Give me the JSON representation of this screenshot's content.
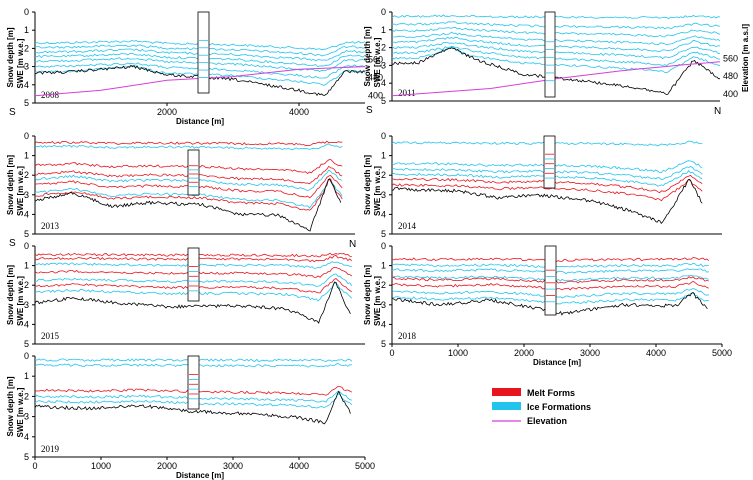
{
  "colors": {
    "melt": "#e8141e",
    "ice": "#22c4ee",
    "elev": "#d63fd6",
    "ground": "#000000"
  },
  "legend": {
    "melt": "Melt Forms",
    "ice": "Ice Formations",
    "elev": "Elevation"
  },
  "axes": {
    "xlabel": "Distance [m]",
    "ylabel_top": "Snow depth [m]",
    "ylabel_bottom": "SWE [m w.e.]",
    "elev_label": "Elevation [m a.s.l]"
  },
  "chart_data": [
    {
      "type": "line",
      "year": "2008",
      "xlim": [
        0,
        5000
      ],
      "ylim": [
        0,
        5
      ],
      "xticks": [
        "2000",
        "4000"
      ],
      "yticks": [
        "0",
        "1",
        "2",
        "3",
        "4",
        "5"
      ],
      "elev_ticks": [
        "560",
        "480",
        "400"
      ],
      "show_xlabel": true,
      "direction": [
        "S",
        ""
      ],
      "ground_profile": [
        [
          0,
          3.35
        ],
        [
          500,
          3.3
        ],
        [
          1000,
          3.15
        ],
        [
          1500,
          3.0
        ],
        [
          2000,
          3.45
        ],
        [
          3000,
          3.7
        ],
        [
          4000,
          4.3
        ],
        [
          4400,
          4.6
        ],
        [
          4700,
          3.25
        ],
        [
          5000,
          3.3
        ]
      ],
      "elevation_profile": [
        [
          0,
          4.6
        ],
        [
          1000,
          4.3
        ],
        [
          2000,
          3.75
        ],
        [
          3000,
          3.55
        ],
        [
          4000,
          3.15
        ],
        [
          5000,
          3.0
        ]
      ],
      "ice_lines": [
        1.7,
        1.95,
        2.2,
        2.45,
        2.7,
        3.0,
        3.3
      ],
      "melt_lines": []
    },
    {
      "type": "line",
      "year": "2011",
      "xlim": [
        0,
        5000
      ],
      "ylim": [
        0,
        5
      ],
      "xticks": [],
      "yticks": [
        "0",
        "1",
        "2",
        "3",
        "4",
        "5"
      ],
      "elev_ticks": [
        "560",
        "480",
        "400"
      ],
      "show_xlabel": false,
      "direction": [
        "S",
        "N"
      ],
      "ground_profile": [
        [
          0,
          2.9
        ],
        [
          400,
          2.85
        ],
        [
          900,
          2.0
        ],
        [
          1300,
          2.7
        ],
        [
          2000,
          3.5
        ],
        [
          3000,
          3.9
        ],
        [
          3800,
          4.3
        ],
        [
          4200,
          4.6
        ],
        [
          4600,
          2.7
        ],
        [
          5000,
          3.8
        ]
      ],
      "elevation_profile": [
        [
          0,
          4.7
        ],
        [
          1500,
          4.3
        ],
        [
          2500,
          3.75
        ],
        [
          3500,
          3.3
        ],
        [
          4500,
          2.95
        ],
        [
          5000,
          2.8
        ]
      ],
      "ice_lines": [
        0.25,
        0.7,
        1.05,
        1.4,
        1.7,
        2.0,
        2.3,
        2.6
      ],
      "melt_lines": []
    },
    {
      "type": "line",
      "year": "2013",
      "xlim": [
        0,
        5000
      ],
      "ylim": [
        0,
        5
      ],
      "xticks": [],
      "yticks": [
        "0",
        "1",
        "2",
        "3",
        "4",
        "5"
      ],
      "elev_ticks": [],
      "show_xlabel": false,
      "direction": [
        "S",
        "N"
      ],
      "ground_profile": [
        [
          0,
          3.3
        ],
        [
          600,
          2.9
        ],
        [
          1200,
          3.6
        ],
        [
          1800,
          3.4
        ],
        [
          2600,
          3.5
        ],
        [
          3200,
          4.0
        ],
        [
          3800,
          4.05
        ],
        [
          4300,
          4.8
        ],
        [
          4600,
          2.1
        ],
        [
          4800,
          3.6
        ]
      ],
      "elevation_profile": [],
      "ice_lines": [
        0.55,
        2.2,
        2.9
      ],
      "melt_lines": [
        0.35,
        1.5,
        1.95,
        2.5,
        3.05
      ]
    },
    {
      "type": "line",
      "year": "2014",
      "xlim": [
        0,
        5000
      ],
      "ylim": [
        0,
        5
      ],
      "xticks": [],
      "yticks": [
        "0",
        "1",
        "2",
        "3",
        "4",
        "5"
      ],
      "elev_ticks": [],
      "show_xlabel": false,
      "direction": [
        "",
        ""
      ],
      "ground_profile": [
        [
          0,
          2.7
        ],
        [
          1000,
          2.8
        ],
        [
          1600,
          3.15
        ],
        [
          2200,
          3.0
        ],
        [
          3000,
          3.3
        ],
        [
          3600,
          3.8
        ],
        [
          4100,
          4.45
        ],
        [
          4500,
          2.2
        ],
        [
          4700,
          3.4
        ]
      ],
      "elevation_profile": [],
      "ice_lines": [
        0.35,
        1.4,
        1.7,
        1.95
      ],
      "melt_lines": [
        2.2,
        2.5
      ]
    },
    {
      "type": "line",
      "year": "2015",
      "xlim": [
        0,
        5000
      ],
      "ylim": [
        0,
        5
      ],
      "xticks": [],
      "yticks": [
        "0",
        "1",
        "2",
        "3",
        "4",
        "5"
      ],
      "elev_ticks": [],
      "show_xlabel": false,
      "direction": [
        "",
        ""
      ],
      "ground_profile": [
        [
          0,
          2.9
        ],
        [
          600,
          2.65
        ],
        [
          1200,
          2.9
        ],
        [
          2000,
          3.1
        ],
        [
          3000,
          3.05
        ],
        [
          3800,
          3.2
        ],
        [
          4300,
          3.9
        ],
        [
          4550,
          1.8
        ],
        [
          4800,
          3.7
        ]
      ],
      "elevation_profile": [],
      "ice_lines": [
        0.95,
        1.75,
        2.35
      ],
      "melt_lines": [
        0.45,
        0.65,
        1.35,
        2.05
      ]
    },
    {
      "type": "line",
      "year": "2018",
      "xlim": [
        0,
        5000
      ],
      "ylim": [
        0,
        5
      ],
      "xticks": [
        "0",
        "1000",
        "2000",
        "3000",
        "4000",
        "5000"
      ],
      "yticks": [
        "0",
        "1",
        "2",
        "3",
        "4",
        "5"
      ],
      "elev_ticks": [],
      "show_xlabel": true,
      "direction": [
        "",
        ""
      ],
      "ground_profile": [
        [
          0,
          2.7
        ],
        [
          700,
          3.0
        ],
        [
          1500,
          2.75
        ],
        [
          2200,
          3.2
        ],
        [
          2600,
          3.45
        ],
        [
          3500,
          3.0
        ],
        [
          4300,
          3.05
        ],
        [
          4550,
          2.4
        ],
        [
          4800,
          3.25
        ]
      ],
      "elevation_profile": [],
      "ice_lines": [
        0.95,
        1.2,
        1.55,
        2.3,
        2.6
      ],
      "melt_lines": [
        0.65,
        1.65,
        1.95
      ]
    },
    {
      "type": "line",
      "year": "2019",
      "xlim": [
        0,
        5000
      ],
      "ylim": [
        0,
        5
      ],
      "xticks": [
        "0",
        "1000",
        "2000",
        "3000",
        "4000",
        "5000"
      ],
      "yticks": [
        "0",
        "1",
        "2",
        "3",
        "4",
        "5"
      ],
      "elev_ticks": [],
      "show_xlabel": true,
      "direction": [
        "",
        ""
      ],
      "ground_profile": [
        [
          0,
          2.5
        ],
        [
          800,
          2.6
        ],
        [
          1600,
          2.45
        ],
        [
          2400,
          2.75
        ],
        [
          3200,
          2.85
        ],
        [
          4000,
          3.05
        ],
        [
          4400,
          3.3
        ],
        [
          4600,
          1.8
        ],
        [
          4800,
          2.95
        ]
      ],
      "elevation_profile": [],
      "ice_lines": [
        0.2,
        0.45,
        2.0,
        2.25
      ],
      "melt_lines": [
        1.7
      ]
    }
  ]
}
